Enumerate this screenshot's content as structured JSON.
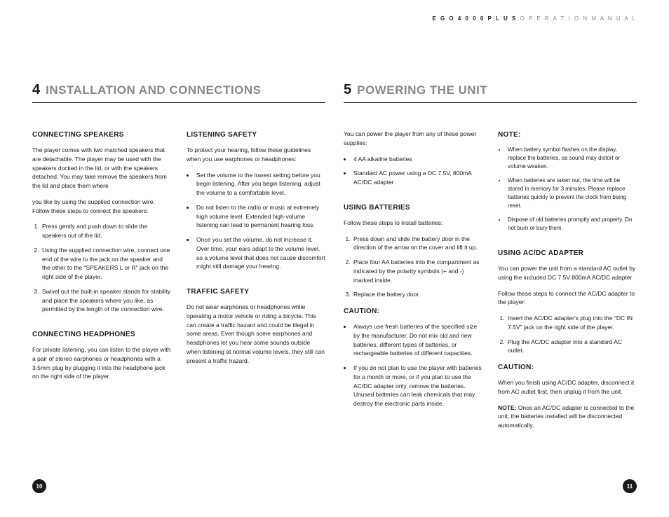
{
  "header": {
    "product": "E G O   4 0 0 0   P L U S",
    "label": " O P E R A T I O N   M A N U A L"
  },
  "leftPage": {
    "number": "4",
    "title": "INSTALLATION AND CONNECTIONS",
    "col1": {
      "h1": "CONNECTING SPEAKERS",
      "p1": "The player comes with two matched speakers that are detachable. The player may be used with the speakers docked in the lid, or with the speakers detached. You may take remove the speakers from the lid and place them where",
      "p2": "you like by using the supplied connection wire. Follow these steps to connect the speakers:",
      "li1": "Press gently and push down to slide the speakers out of the lid.",
      "li2": "Using the supplied connection wire, connect one end of the wire to the jack on the speaker and the other to the \"SPEAKERS L or R\" jack on the right side of the player.",
      "li3": "Swivel out the built-in speaker stands for stability and place the speakers where you like, as permitted by the length of the connection wire.",
      "h2": "CONNECTING HEADPHONES",
      "p3": "For private listening, you can listen to the player with a pair of stereo earphones or headphones with a 3.5mm plug by plugging it into the headphone jack on the right side of the player."
    },
    "col2": {
      "h1": "LISTENING SAFETY",
      "p1": "To protect your hearing, follow these guidelines when you use earphones or headphones:",
      "li1": "Set the volume to the lowest setting before you begin listening. After you begin listening, adjust the volume to a comfortable level.",
      "li2": "Do not listen to the radio or music at extremely high volume level. Extended high-volume listening can lead to permanent hearing loss.",
      "li3": "Once you set the volume, do not increase it. Over time, your ears adapt to the volume level, so a volume level that does not cause discomfort might still damage your hearing.",
      "h2": "TRAFFIC SAFETY",
      "p2": "Do not wear earphones or headphones while operating a motor vehicle or riding a bicycle. This can create a traffic hazard and could be illegal in some areas. Even though some earphones and headphones let you hear some sounds outside when listening at normal volume levels, they still can present a traffic hazard."
    },
    "pageNum": "10"
  },
  "rightPage": {
    "number": "5",
    "title": "POWERING THE UNIT",
    "col1": {
      "p1": "You can power the player from any of these power supplies:",
      "li0a": "4 AA alkaline batteries",
      "li0b": "Standard AC power using a DC 7.5V, 800mA AC/DC adapter",
      "h1": "USING BATTERIES",
      "p2": "Follow these steps to install batteries:",
      "li1": "Press down and slide the battery door in the direction of the arrow on the cover and lift it up.",
      "li2": "Place four AA batteries into the compartment as indicated by the polarity symbols (+ and -) marked inside.",
      "li3": "Replace the battery door.",
      "caution": "CAUTION:",
      "c1": "Always use fresh batteries of the specified size by the manufacturer. Do not mix old and new batteries, different types of batteries, or rechargeable batteries of different capacities.",
      "c2": "If you do not plan to use the player with batteries for a month or more, or if you plan to use the AC/DC adapter only, remove the batteries. Unused batteries can leak chemicals that may destroy the electronic parts inside."
    },
    "col2": {
      "note": "NOTE:",
      "n1": "When battery symbol flashes on the display, replace the batteries, as sound may distort or volume weaken.",
      "n2": "When batteries are taken out, the time will be stored in memory for 3 minutes. Please replace batteries quickly to prevent the clock from being reset.",
      "n3": "Dispose of old batteries promptly and properly. Do not burn or bury them.",
      "h1": "USING AC/DC ADAPTER",
      "p1": "You can power the unit from a standard AC outlet by using the included DC 7.5V 800mA AC/DC adapter",
      "p2": "Follow these steps to connect the AC/DC adapter to the player:",
      "li1": "Insert the AC/DC adapter's plug into the \"DC IN 7.5V\" jack on the right side of the player.",
      "li2": "Plug the AC/DC adapter into a standard AC outlet.",
      "caution": "CAUTION:",
      "cp": "When you finish using AC/DC adapter, disconnect it from AC outlet first, then unplug it from the unit.",
      "notelabel": "NOTE: ",
      "notep": "Once an AC/DC adapter is connected to the unit, the batteries installed will be disconnected automatically."
    },
    "pageNum": "11"
  }
}
